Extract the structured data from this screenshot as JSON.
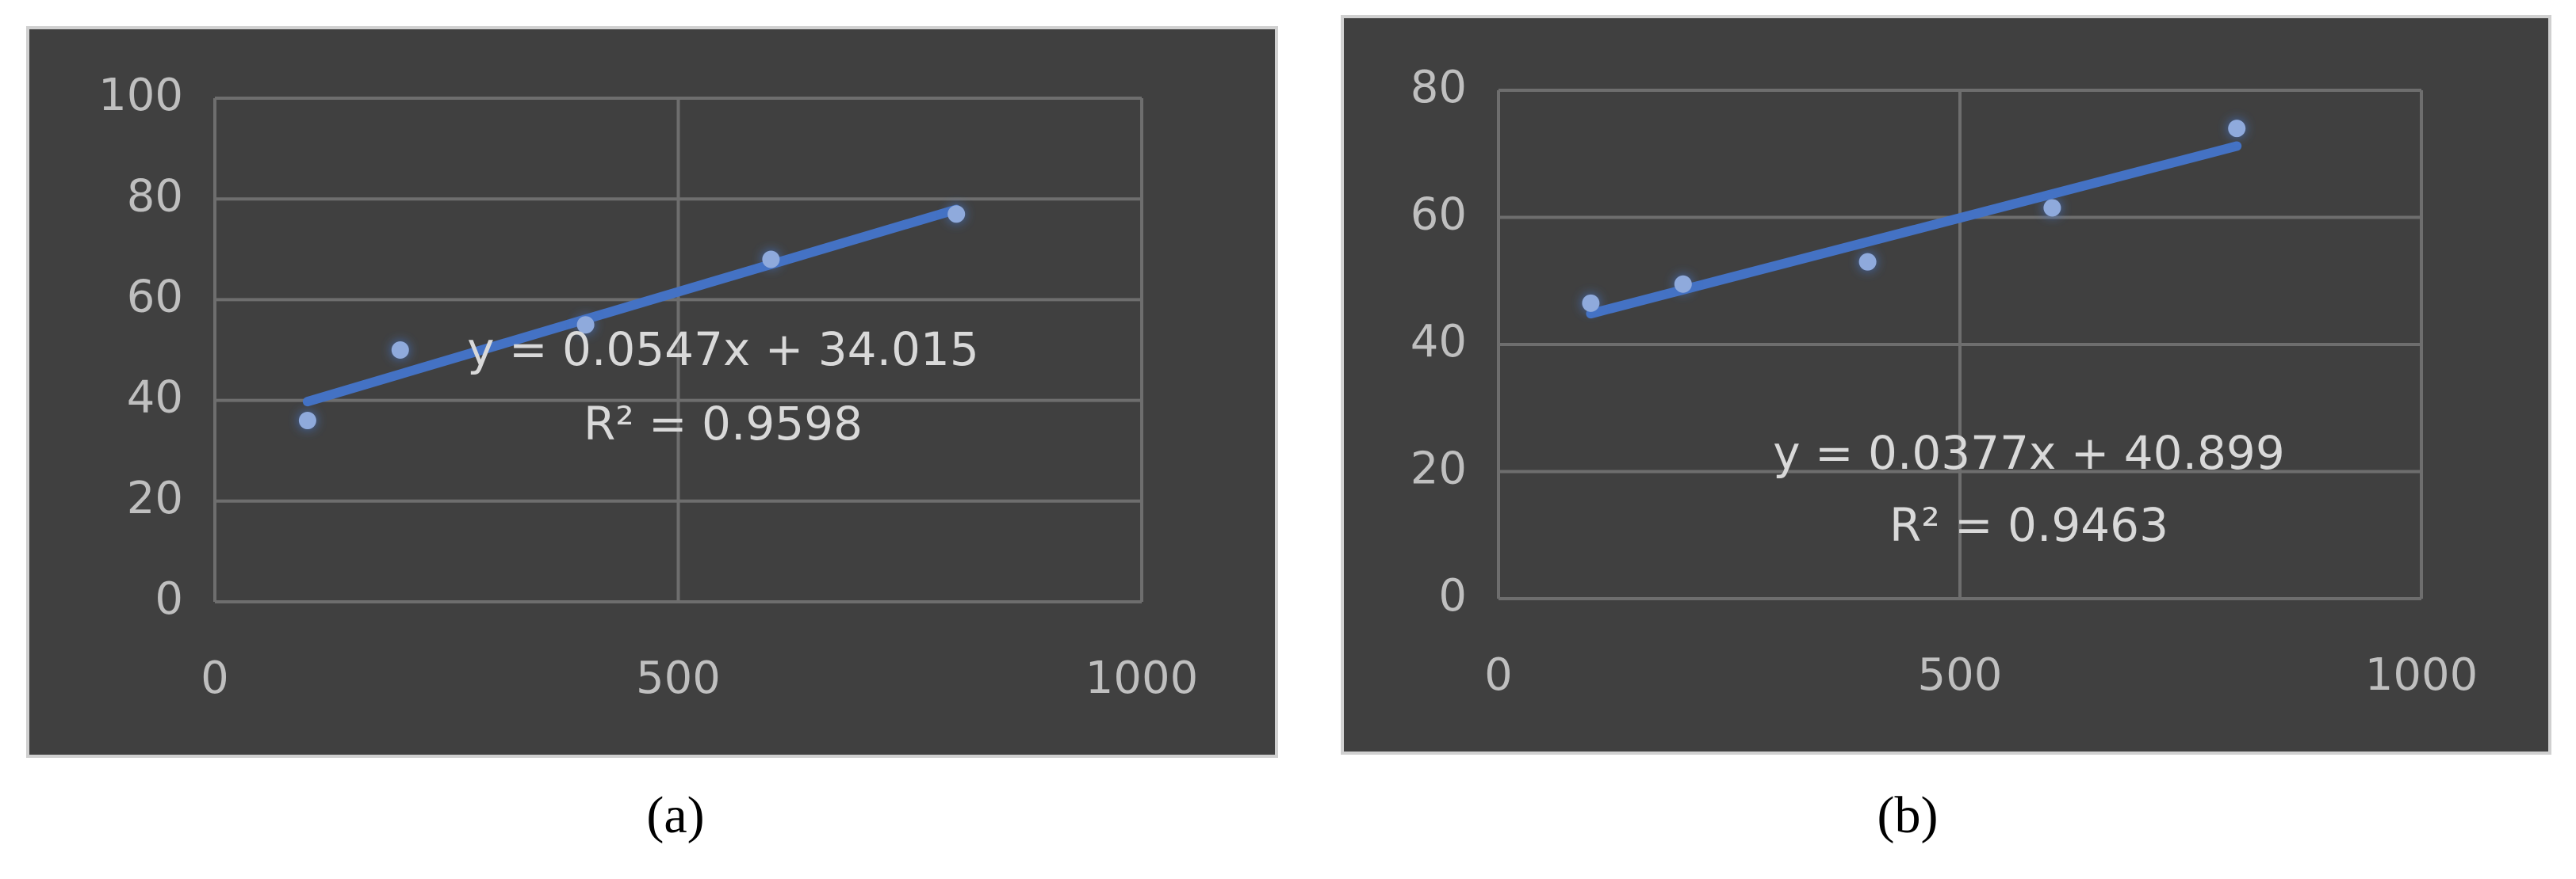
{
  "chart_data": [
    {
      "type": "scatter",
      "caption": "(a)",
      "x": [
        100,
        200,
        400,
        600,
        800
      ],
      "values": [
        36,
        50,
        55,
        68,
        77
      ],
      "color": "#8faadc",
      "trendline_color": "#4472c4",
      "xlim": [
        0,
        1000
      ],
      "xticks": [
        0,
        500,
        1000
      ],
      "ylim": [
        0,
        100
      ],
      "yticks": [
        0,
        20,
        40,
        60,
        80,
        100
      ],
      "grid": true,
      "trendline": {
        "equation": "y = 0.0547x + 34.015",
        "r_squared": "R² = 0.9598"
      }
    },
    {
      "type": "scatter",
      "caption": "(b)",
      "x": [
        100,
        200,
        400,
        600,
        800
      ],
      "values": [
        46.5,
        49.5,
        53,
        61.5,
        74
      ],
      "color": "#8faadc",
      "trendline_color": "#4472c4",
      "xlim": [
        0,
        1000
      ],
      "xticks": [
        0,
        500,
        1000
      ],
      "ylim": [
        0,
        80
      ],
      "yticks": [
        0,
        20,
        40,
        60,
        80
      ],
      "grid": true,
      "trendline": {
        "equation": "y = 0.0377x + 40.899",
        "r_squared": "R² = 0.9463"
      }
    }
  ]
}
